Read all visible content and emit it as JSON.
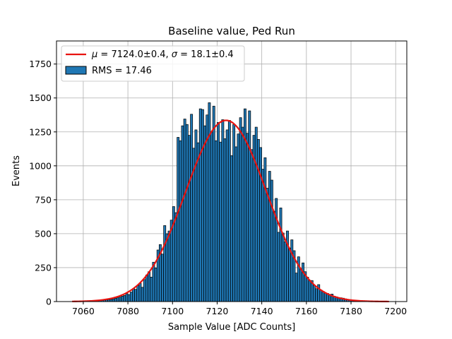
{
  "chart_data": {
    "type": "bar",
    "title": "Baseline value, Ped Run",
    "xlabel": "Sample Value [ADC Counts]",
    "ylabel": "Events",
    "xlim": [
      7048,
      7205
    ],
    "ylim": [
      0,
      1920
    ],
    "xticks": [
      7060,
      7080,
      7100,
      7120,
      7140,
      7160,
      7180,
      7200
    ],
    "yticks": [
      0,
      250,
      500,
      750,
      1000,
      1250,
      1500,
      1750
    ],
    "grid": true,
    "legend_position": "top-left",
    "colors": {
      "bars": "#1f77b4",
      "bar_edge": "#000000",
      "fit": "#e8130f",
      "grid": "#b0b0b0"
    },
    "histogram": {
      "name": "RMS = 17.46",
      "bin_width": 1,
      "x_start": 7060,
      "values": [
        2,
        2,
        3,
        4,
        3,
        5,
        6,
        7,
        8,
        10,
        12,
        14,
        16,
        20,
        24,
        28,
        33,
        40,
        45,
        58,
        52,
        70,
        95,
        90,
        118,
        135,
        105,
        162,
        196,
        220,
        180,
        290,
        248,
        380,
        420,
        350,
        560,
        500,
        520,
        600,
        700,
        655,
        1210,
        1185,
        1295,
        1345,
        1305,
        1225,
        1380,
        1130,
        1265,
        1170,
        1420,
        1415,
        1295,
        1375,
        1465,
        1250,
        1440,
        1185,
        1320,
        1175,
        1340,
        1200,
        1265,
        1335,
        1075,
        1305,
        1140,
        1235,
        1355,
        1285,
        1420,
        1240,
        1405,
        1120,
        1225,
        1285,
        1195,
        1135,
        975,
        1060,
        835,
        960,
        895,
        665,
        760,
        510,
        690,
        505,
        440,
        520,
        395,
        455,
        375,
        210,
        330,
        240,
        285,
        220,
        180,
        155,
        155,
        120,
        95,
        125,
        85,
        75,
        65,
        60,
        50,
        55,
        40,
        35,
        30,
        28,
        25,
        20,
        15,
        12,
        10,
        8,
        6,
        4,
        3,
        2,
        2,
        1
      ]
    },
    "fit": {
      "name_parts": [
        "μ",
        " = 7124.0±0.4, ",
        "σ",
        " = 18.1±0.4"
      ],
      "mean": 7124.0,
      "sigma": 18.1,
      "amplitude": 1335,
      "x_range": [
        7055,
        7197
      ]
    }
  }
}
